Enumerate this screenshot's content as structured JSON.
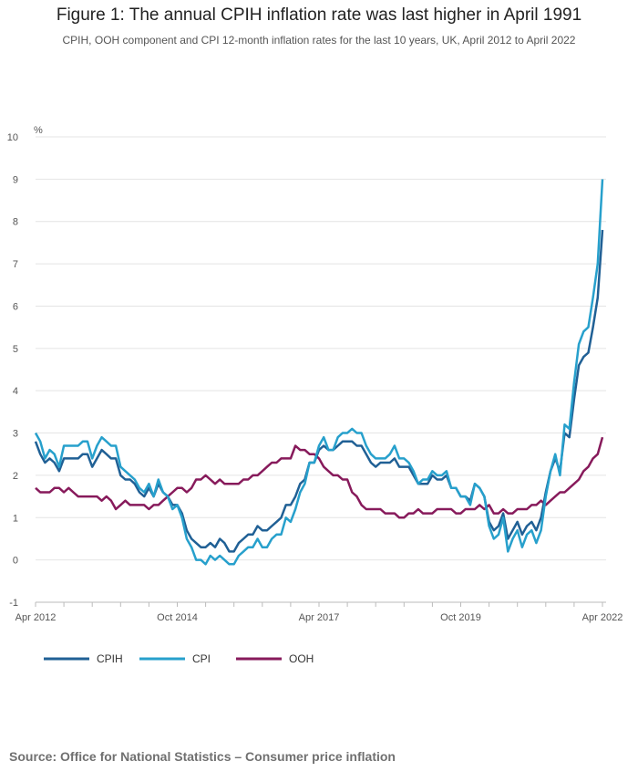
{
  "title": "Figure 1: The annual CPIH inflation rate was last higher in April 1991",
  "subtitle": "CPIH, OOH component and CPI 12-month inflation rates for the last 10 years, UK, April 2012 to April 2022",
  "source": "Source: Office for National Statistics – Consumer price inflation",
  "chart_data": {
    "type": "line",
    "ylabel": "%",
    "ylim": [
      -1,
      10
    ],
    "yticks": [
      "-1",
      "0",
      "1",
      "2",
      "3",
      "4",
      "5",
      "6",
      "7",
      "8",
      "9",
      "10"
    ],
    "x_start": "Apr 2012",
    "x_end": "Apr 2022",
    "xtick_labels": [
      "Apr 2012",
      "Oct 2014",
      "Apr 2017",
      "Oct 2019",
      "Apr 2022"
    ],
    "grid": "horizontal",
    "legend": "bottom-left",
    "series": [
      {
        "name": "CPIH",
        "color": "#206095",
        "values": [
          2.8,
          2.5,
          2.3,
          2.4,
          2.3,
          2.1,
          2.4,
          2.4,
          2.4,
          2.4,
          2.5,
          2.5,
          2.2,
          2.4,
          2.6,
          2.5,
          2.4,
          2.4,
          2.0,
          1.9,
          1.9,
          1.8,
          1.6,
          1.5,
          1.7,
          1.5,
          1.8,
          1.6,
          1.5,
          1.3,
          1.3,
          1.1,
          0.7,
          0.5,
          0.4,
          0.3,
          0.3,
          0.4,
          0.3,
          0.5,
          0.4,
          0.2,
          0.2,
          0.4,
          0.5,
          0.6,
          0.6,
          0.8,
          0.7,
          0.7,
          0.8,
          0.9,
          1.0,
          1.3,
          1.3,
          1.5,
          1.8,
          1.9,
          2.3,
          2.3,
          2.6,
          2.7,
          2.6,
          2.6,
          2.7,
          2.8,
          2.8,
          2.8,
          2.7,
          2.7,
          2.5,
          2.3,
          2.2,
          2.3,
          2.3,
          2.3,
          2.4,
          2.2,
          2.2,
          2.2,
          2.0,
          1.8,
          1.8,
          1.8,
          2.0,
          1.9,
          1.9,
          2.0,
          1.7,
          1.7,
          1.5,
          1.5,
          1.4,
          1.8,
          1.7,
          1.5,
          0.9,
          0.7,
          0.8,
          1.1,
          0.5,
          0.7,
          0.9,
          0.6,
          0.8,
          0.9,
          0.7,
          1.0,
          1.6,
          2.1,
          2.4,
          2.1,
          3.0,
          2.9,
          3.8,
          4.6,
          4.8,
          4.9,
          5.5,
          6.2,
          7.8
        ]
      },
      {
        "name": "CPI",
        "color": "#27a0cc",
        "values": [
          3.0,
          2.8,
          2.4,
          2.6,
          2.5,
          2.2,
          2.7,
          2.7,
          2.7,
          2.7,
          2.8,
          2.8,
          2.4,
          2.7,
          2.9,
          2.8,
          2.7,
          2.7,
          2.2,
          2.1,
          2.0,
          1.9,
          1.7,
          1.6,
          1.8,
          1.5,
          1.9,
          1.6,
          1.5,
          1.2,
          1.3,
          1.0,
          0.5,
          0.3,
          0.0,
          0.0,
          -0.1,
          0.1,
          0.0,
          0.1,
          0.0,
          -0.1,
          -0.1,
          0.1,
          0.2,
          0.3,
          0.3,
          0.5,
          0.3,
          0.3,
          0.5,
          0.6,
          0.6,
          1.0,
          0.9,
          1.2,
          1.6,
          1.8,
          2.3,
          2.3,
          2.7,
          2.9,
          2.6,
          2.6,
          2.9,
          3.0,
          3.0,
          3.1,
          3.0,
          3.0,
          2.7,
          2.5,
          2.4,
          2.4,
          2.4,
          2.5,
          2.7,
          2.4,
          2.4,
          2.3,
          2.1,
          1.8,
          1.9,
          1.9,
          2.1,
          2.0,
          2.0,
          2.1,
          1.7,
          1.7,
          1.5,
          1.5,
          1.3,
          1.8,
          1.7,
          1.5,
          0.8,
          0.5,
          0.6,
          1.0,
          0.2,
          0.5,
          0.7,
          0.3,
          0.6,
          0.7,
          0.4,
          0.7,
          1.5,
          2.1,
          2.5,
          2.0,
          3.2,
          3.1,
          4.2,
          5.1,
          5.4,
          5.5,
          6.2,
          7.0,
          9.0
        ]
      },
      {
        "name": "OOH",
        "color": "#871a5b",
        "values": [
          1.7,
          1.6,
          1.6,
          1.6,
          1.7,
          1.7,
          1.6,
          1.7,
          1.6,
          1.5,
          1.5,
          1.5,
          1.5,
          1.5,
          1.4,
          1.5,
          1.4,
          1.2,
          1.3,
          1.4,
          1.3,
          1.3,
          1.3,
          1.3,
          1.2,
          1.3,
          1.3,
          1.4,
          1.5,
          1.6,
          1.7,
          1.7,
          1.6,
          1.7,
          1.9,
          1.9,
          2.0,
          1.9,
          1.8,
          1.9,
          1.8,
          1.8,
          1.8,
          1.8,
          1.9,
          1.9,
          2.0,
          2.0,
          2.1,
          2.2,
          2.3,
          2.3,
          2.4,
          2.4,
          2.4,
          2.7,
          2.6,
          2.6,
          2.5,
          2.5,
          2.4,
          2.2,
          2.1,
          2.0,
          2.0,
          1.9,
          1.9,
          1.6,
          1.5,
          1.3,
          1.2,
          1.2,
          1.2,
          1.2,
          1.1,
          1.1,
          1.1,
          1.0,
          1.0,
          1.1,
          1.1,
          1.2,
          1.1,
          1.1,
          1.1,
          1.2,
          1.2,
          1.2,
          1.2,
          1.1,
          1.1,
          1.2,
          1.2,
          1.2,
          1.3,
          1.2,
          1.3,
          1.1,
          1.1,
          1.2,
          1.1,
          1.1,
          1.2,
          1.2,
          1.2,
          1.3,
          1.3,
          1.4,
          1.3,
          1.4,
          1.5,
          1.6,
          1.6,
          1.7,
          1.8,
          1.9,
          2.1,
          2.2,
          2.4,
          2.5,
          2.9
        ]
      }
    ]
  }
}
